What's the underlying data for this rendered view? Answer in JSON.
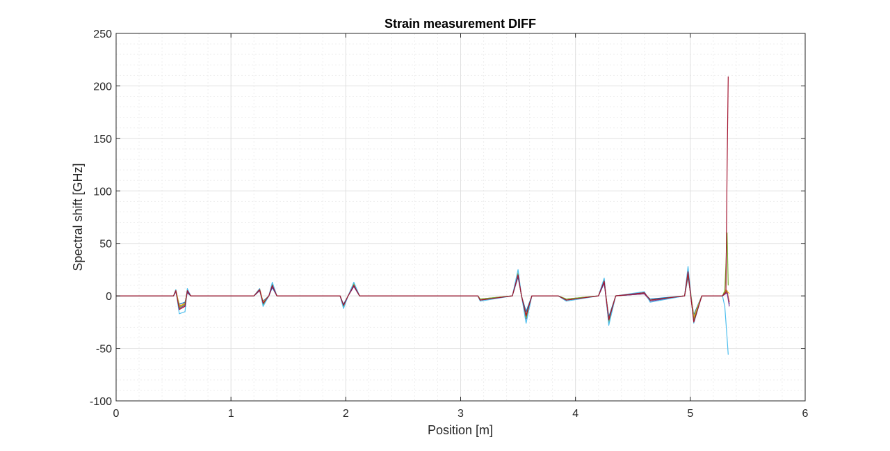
{
  "chart_data": {
    "type": "line",
    "title": "Strain measurement DIFF",
    "xlabel": "Position [m]",
    "ylabel": "Spectral shift [GHz]",
    "xlim": [
      0,
      6
    ],
    "ylim": [
      -100,
      250
    ],
    "xticks": [
      0,
      1,
      2,
      3,
      4,
      5,
      6
    ],
    "yticks": [
      -100,
      -50,
      0,
      50,
      100,
      150,
      200,
      250
    ],
    "grid": true,
    "minor_grid": true,
    "legend": "none",
    "series": [
      {
        "color": "#0072BD",
        "x": [
          0,
          0.5,
          0.52,
          0.55,
          0.6,
          0.62,
          0.65,
          1.2,
          1.25,
          1.28,
          1.33,
          1.36,
          1.4,
          1.95,
          1.98,
          2.02,
          2.07,
          2.12,
          3.15,
          3.17,
          3.45,
          3.5,
          3.53,
          3.57,
          3.62,
          3.85,
          3.92,
          4.2,
          4.25,
          4.29,
          4.35,
          4.6,
          4.65,
          4.95,
          4.98,
          5.03,
          5.1,
          5.28,
          5.32,
          5.34
        ],
        "y": [
          0,
          0,
          4,
          -8,
          -6,
          3,
          0,
          0,
          5,
          -5,
          0,
          8,
          0,
          0,
          -8,
          0,
          9,
          0,
          0,
          -3,
          0,
          18,
          0,
          -15,
          0,
          0,
          -3,
          0,
          12,
          -20,
          0,
          2,
          -3,
          0,
          18,
          -18,
          0,
          0,
          5,
          -8
        ]
      },
      {
        "color": "#D95319",
        "x": [
          0,
          0.5,
          0.52,
          0.55,
          0.6,
          0.62,
          0.65,
          1.2,
          1.25,
          1.28,
          1.33,
          1.36,
          1.4,
          1.95,
          1.98,
          2.02,
          2.07,
          2.12,
          3.15,
          3.17,
          3.45,
          3.5,
          3.53,
          3.57,
          3.62,
          3.85,
          3.92,
          4.2,
          4.25,
          4.29,
          4.35,
          4.6,
          4.65,
          4.95,
          4.98,
          5.03,
          5.1,
          5.28,
          5.32,
          5.34
        ],
        "y": [
          0,
          0,
          5,
          -10,
          -7,
          4,
          0,
          0,
          6,
          -7,
          0,
          10,
          0,
          0,
          -9,
          0,
          10,
          0,
          0,
          -4,
          0,
          20,
          0,
          -18,
          0,
          0,
          -4,
          0,
          14,
          -22,
          0,
          2,
          -4,
          0,
          20,
          -22,
          0,
          0,
          4,
          -6
        ]
      },
      {
        "color": "#EDB120",
        "x": [
          0,
          0.5,
          0.52,
          0.55,
          0.6,
          0.62,
          0.65,
          1.2,
          1.25,
          1.28,
          1.33,
          1.36,
          1.4,
          1.95,
          1.98,
          2.02,
          2.07,
          2.12,
          3.15,
          3.17,
          3.45,
          3.5,
          3.53,
          3.57,
          3.62,
          3.85,
          3.92,
          4.2,
          4.25,
          4.29,
          4.35,
          4.6,
          4.65,
          4.95,
          4.98,
          5.03,
          5.1,
          5.28,
          5.31,
          5.34
        ],
        "y": [
          0,
          0,
          6,
          -9,
          -8,
          5,
          0,
          0,
          7,
          -6,
          0,
          11,
          0,
          0,
          -10,
          0,
          11,
          0,
          0,
          -3,
          0,
          22,
          0,
          -20,
          0,
          0,
          -3,
          0,
          15,
          -24,
          0,
          3,
          -4,
          0,
          24,
          -20,
          0,
          0,
          6,
          2
        ]
      },
      {
        "color": "#7E2F8E",
        "x": [
          0,
          0.5,
          0.52,
          0.55,
          0.6,
          0.62,
          0.65,
          1.2,
          1.25,
          1.28,
          1.33,
          1.36,
          1.4,
          1.95,
          1.98,
          2.02,
          2.07,
          2.12,
          3.15,
          3.17,
          3.45,
          3.5,
          3.53,
          3.57,
          3.62,
          3.85,
          3.92,
          4.2,
          4.25,
          4.29,
          4.35,
          4.6,
          4.65,
          4.95,
          4.98,
          5.03,
          5.1,
          5.28,
          5.32,
          5.34
        ],
        "y": [
          0,
          0,
          4,
          -12,
          -9,
          4,
          0,
          0,
          5,
          -8,
          0,
          9,
          0,
          0,
          -11,
          0,
          9,
          0,
          0,
          -4,
          0,
          19,
          0,
          -22,
          0,
          0,
          -4,
          0,
          13,
          -26,
          0,
          2,
          -5,
          0,
          21,
          -24,
          0,
          0,
          3,
          -10
        ]
      },
      {
        "color": "#77AC30",
        "x": [
          0,
          0.5,
          0.52,
          0.55,
          0.6,
          0.62,
          0.65,
          1.2,
          1.25,
          1.28,
          1.33,
          1.36,
          1.4,
          1.95,
          1.98,
          2.02,
          2.07,
          2.12,
          3.15,
          3.17,
          3.45,
          3.5,
          3.53,
          3.57,
          3.62,
          3.85,
          3.92,
          4.2,
          4.25,
          4.29,
          4.35,
          4.6,
          4.65,
          4.95,
          4.98,
          5.03,
          5.1,
          5.28,
          5.3,
          5.31,
          5.32,
          5.33
        ],
        "y": [
          0,
          0,
          5,
          -11,
          -8,
          6,
          0,
          0,
          6,
          -9,
          0,
          12,
          0,
          0,
          -10,
          0,
          12,
          0,
          0,
          -3,
          0,
          21,
          0,
          -21,
          0,
          0,
          -3,
          0,
          16,
          -25,
          0,
          3,
          -4,
          0,
          22,
          -23,
          0,
          0,
          5,
          30,
          60,
          10
        ]
      },
      {
        "color": "#4DBEEE",
        "x": [
          0,
          0.5,
          0.52,
          0.55,
          0.6,
          0.62,
          0.65,
          1.2,
          1.25,
          1.28,
          1.33,
          1.36,
          1.4,
          1.95,
          1.98,
          2.02,
          2.07,
          2.12,
          3.15,
          3.17,
          3.45,
          3.5,
          3.53,
          3.57,
          3.62,
          3.85,
          3.92,
          4.2,
          4.25,
          4.29,
          4.35,
          4.6,
          4.65,
          4.95,
          4.98,
          5.03,
          5.1,
          5.28,
          5.3,
          5.32,
          5.33
        ],
        "y": [
          0,
          0,
          6,
          -17,
          -15,
          7,
          0,
          0,
          7,
          -10,
          0,
          13,
          0,
          0,
          -12,
          0,
          13,
          0,
          0,
          -5,
          0,
          25,
          0,
          -26,
          0,
          0,
          -5,
          0,
          17,
          -28,
          0,
          4,
          -6,
          0,
          28,
          -26,
          0,
          0,
          -10,
          -40,
          -56
        ]
      },
      {
        "color": "#A2142F",
        "x": [
          0,
          0.5,
          0.52,
          0.55,
          0.6,
          0.62,
          0.65,
          1.2,
          1.25,
          1.28,
          1.33,
          1.36,
          1.4,
          1.95,
          1.98,
          2.02,
          2.07,
          2.12,
          3.15,
          3.17,
          3.45,
          3.5,
          3.53,
          3.57,
          3.62,
          3.85,
          3.92,
          4.2,
          4.25,
          4.29,
          4.35,
          4.6,
          4.65,
          4.95,
          4.98,
          5.03,
          5.1,
          5.28,
          5.31,
          5.32,
          5.33
        ],
        "y": [
          0,
          0,
          5,
          -13,
          -10,
          5,
          0,
          0,
          6,
          -7,
          0,
          10,
          0,
          0,
          -9,
          0,
          10,
          0,
          0,
          -4,
          0,
          20,
          0,
          -19,
          0,
          0,
          -4,
          0,
          14,
          -23,
          0,
          3,
          -4,
          0,
          23,
          -25,
          0,
          0,
          4,
          120,
          209
        ]
      }
    ]
  }
}
